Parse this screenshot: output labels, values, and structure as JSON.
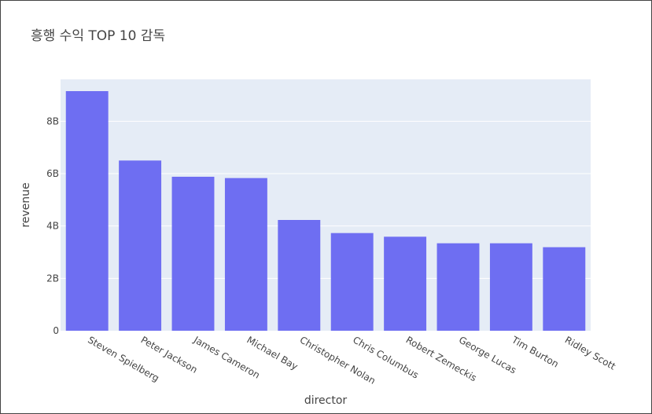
{
  "chart_data": {
    "type": "bar",
    "title": "흥행 수익 TOP 10 감독",
    "xlabel": "director",
    "ylabel": "revenue",
    "categories": [
      "Steven Spielberg",
      "Peter Jackson",
      "James Cameron",
      "Michael Bay",
      "Christopher Nolan",
      "Chris Columbus",
      "Robert Zemeckis",
      "George Lucas",
      "Tim Burton",
      "Ridley Scott"
    ],
    "values": [
      9.15,
      6.5,
      5.88,
      5.83,
      4.23,
      3.73,
      3.59,
      3.34,
      3.34,
      3.19
    ],
    "ylim": [
      0,
      9.6
    ],
    "yticks": [
      0,
      2,
      4,
      6,
      8
    ],
    "ytick_labels": [
      "0",
      "2B",
      "4B",
      "6B",
      "8B"
    ],
    "bar_color": "#6e6ef2",
    "plot_bg": "#e5ecf6",
    "grid": true
  }
}
